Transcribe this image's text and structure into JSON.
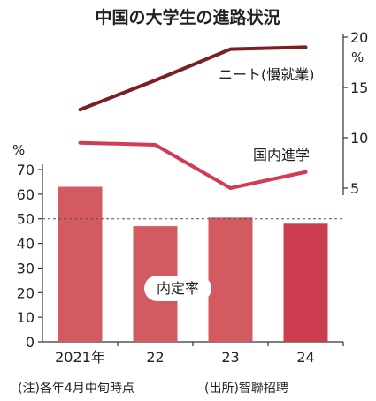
{
  "chart_data": {
    "title": "中国の大学生の進路状況",
    "x": {
      "categories": [
        "2021年",
        "22",
        "23",
        "24"
      ]
    },
    "left_axis": {
      "unit": "%",
      "min": 0,
      "max": 70,
      "ticks": [
        0,
        10,
        20,
        30,
        40,
        50,
        60,
        70
      ]
    },
    "right_axis": {
      "unit": "%",
      "min": 5,
      "max": 20,
      "ticks": [
        5,
        10,
        15,
        20
      ]
    },
    "reference_line": {
      "value": 50
    },
    "bars": {
      "type": "bar",
      "name": "内定率",
      "values": [
        63,
        47,
        50.5,
        48
      ],
      "colors": [
        "#d45a62",
        "#d45a62",
        "#d45a62",
        "#cc3d4f"
      ]
    },
    "lines": [
      {
        "type": "line",
        "name": "ニート(慢就業)",
        "values": [
          12.8,
          15.7,
          18.8,
          19.0
        ],
        "color": "#7a1f22"
      },
      {
        "type": "line",
        "name": "国内進学",
        "values": [
          9.5,
          9.3,
          5.0,
          6.6
        ],
        "color": "#d23a55"
      }
    ],
    "note": "(注)各年4月中旬時点",
    "source": "(出所)智聯招聘"
  }
}
